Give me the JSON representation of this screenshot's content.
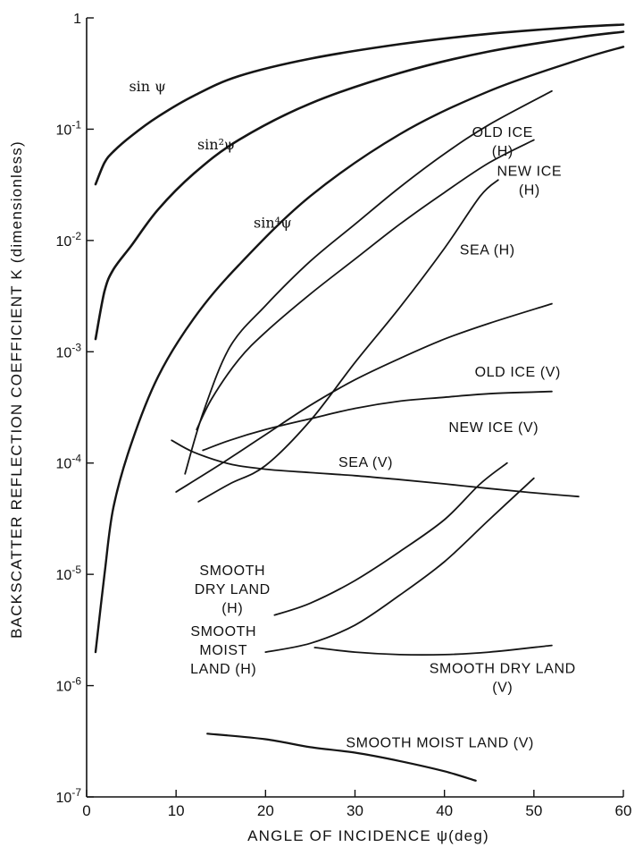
{
  "chart_data": {
    "type": "line",
    "title": "",
    "xlabel": "ANGLE OF INCIDENCE ψ(deg)",
    "ylabel": "BACKSCATTER REFLECTION COEFFICIENT K (dimensionless)",
    "xlim": [
      0,
      60
    ],
    "ylim": [
      1e-07,
      1
    ],
    "yscale": "log",
    "grid": false,
    "legend": "none",
    "x_ticks": [
      {
        "value": 0,
        "label": "0"
      },
      {
        "value": 10,
        "label": "10"
      },
      {
        "value": 20,
        "label": "20"
      },
      {
        "value": 30,
        "label": "30"
      },
      {
        "value": 40,
        "label": "40"
      },
      {
        "value": 50,
        "label": "50"
      },
      {
        "value": 60,
        "label": "60"
      }
    ],
    "y_ticks": [
      {
        "value": 1,
        "label": "1"
      },
      {
        "value": 0.1,
        "label": "10",
        "exp": "-1"
      },
      {
        "value": 0.01,
        "label": "10",
        "exp": "-2"
      },
      {
        "value": 0.001,
        "label": "10",
        "exp": "-3"
      },
      {
        "value": 0.0001,
        "label": "10",
        "exp": "-4"
      },
      {
        "value": 1e-05,
        "label": "10",
        "exp": "-5"
      },
      {
        "value": 1e-06,
        "label": "10",
        "exp": "-6"
      },
      {
        "value": 1e-07,
        "label": "10",
        "exp": "-7"
      }
    ],
    "series": [
      {
        "name": "sin ψ",
        "label_lines": [
          "sin ψ"
        ],
        "label_at": [
          6.8,
          0.22
        ],
        "label_kind": "func",
        "width": 2.6,
        "points": [
          [
            1,
            0.032
          ],
          [
            2,
            0.05
          ],
          [
            3,
            0.063
          ],
          [
            5,
            0.087
          ],
          [
            8,
            0.13
          ],
          [
            12,
            0.2
          ],
          [
            17,
            0.3
          ],
          [
            25,
            0.43
          ],
          [
            35,
            0.58
          ],
          [
            45,
            0.72
          ],
          [
            55,
            0.83
          ],
          [
            60,
            0.87
          ]
        ]
      },
      {
        "name": "sin²ψ",
        "label_lines": [
          "sin²ψ"
        ],
        "label_at": [
          14.5,
          0.066
        ],
        "label_kind": "func",
        "width": 2.6,
        "points": [
          [
            1,
            0.0013
          ],
          [
            2,
            0.0035
          ],
          [
            3,
            0.0055
          ],
          [
            5,
            0.009
          ],
          [
            8,
            0.019
          ],
          [
            12,
            0.04
          ],
          [
            17,
            0.08
          ],
          [
            25,
            0.17
          ],
          [
            35,
            0.32
          ],
          [
            45,
            0.5
          ],
          [
            55,
            0.67
          ],
          [
            60,
            0.75
          ]
        ]
      },
      {
        "name": "sin⁴ψ",
        "label_lines": [
          "sin⁴ψ"
        ],
        "label_at": [
          20.8,
          0.013
        ],
        "label_kind": "func",
        "width": 2.4,
        "points": [
          [
            1,
            2e-06
          ],
          [
            2,
            1e-05
          ],
          [
            3,
            4e-05
          ],
          [
            5,
            0.00015
          ],
          [
            8,
            0.0006
          ],
          [
            12,
            0.002
          ],
          [
            17,
            0.006
          ],
          [
            25,
            0.025
          ],
          [
            35,
            0.09
          ],
          [
            45,
            0.22
          ],
          [
            55,
            0.42
          ],
          [
            60,
            0.55
          ]
        ]
      },
      {
        "name": "OLD ICE (H)",
        "label_lines": [
          "OLD ICE",
          "(H)"
        ],
        "label_at": [
          46.5,
          0.085
        ],
        "label_kind": "text",
        "width": 1.8,
        "points": [
          [
            11,
            8e-05
          ],
          [
            13,
            0.00028
          ],
          [
            16,
            0.0011
          ],
          [
            20,
            0.0026
          ],
          [
            25,
            0.0065
          ],
          [
            30,
            0.014
          ],
          [
            35,
            0.03
          ],
          [
            40,
            0.06
          ],
          [
            45,
            0.11
          ],
          [
            52,
            0.22
          ]
        ]
      },
      {
        "name": "NEW ICE (H)",
        "label_lines": [
          "NEW ICE",
          "(H)"
        ],
        "label_at": [
          49.5,
          0.038
        ],
        "label_kind": "text",
        "width": 1.8,
        "points": [
          [
            12.3,
            0.0002
          ],
          [
            14,
            0.00038
          ],
          [
            17,
            0.00085
          ],
          [
            20,
            0.0015
          ],
          [
            25,
            0.0033
          ],
          [
            30,
            0.0068
          ],
          [
            35,
            0.014
          ],
          [
            40,
            0.027
          ],
          [
            45,
            0.05
          ],
          [
            50,
            0.08
          ]
        ]
      },
      {
        "name": "SEA (H)",
        "label_lines": [
          "SEA (H)"
        ],
        "label_at": [
          44.8,
          0.0075
        ],
        "label_kind": "text",
        "width": 1.8,
        "points": [
          [
            12.5,
            4.5e-05
          ],
          [
            16,
            6.5e-05
          ],
          [
            20,
            9.5e-05
          ],
          [
            25,
            0.00024
          ],
          [
            30,
            0.0008
          ],
          [
            35,
            0.0025
          ],
          [
            40,
            0.0085
          ],
          [
            44,
            0.025
          ],
          [
            46,
            0.035
          ]
        ]
      },
      {
        "name": "OLD ICE (V)",
        "label_lines": [
          "OLD ICE (V)"
        ],
        "label_at": [
          48.2,
          0.0006
        ],
        "label_kind": "text",
        "width": 1.8,
        "points": [
          [
            10,
            5.5e-05
          ],
          [
            15,
            9.8e-05
          ],
          [
            20,
            0.00018
          ],
          [
            25,
            0.00033
          ],
          [
            30,
            0.00056
          ],
          [
            35,
            0.00087
          ],
          [
            40,
            0.0013
          ],
          [
            45,
            0.0018
          ],
          [
            52,
            0.0027
          ]
        ]
      },
      {
        "name": "NEW ICE (V)",
        "label_lines": [
          "NEW ICE (V)"
        ],
        "label_at": [
          45.5,
          0.00019
        ],
        "label_kind": "text",
        "width": 1.8,
        "points": [
          [
            13,
            0.00013
          ],
          [
            16,
            0.00016
          ],
          [
            20,
            0.0002
          ],
          [
            25,
            0.00025
          ],
          [
            30,
            0.00031
          ],
          [
            35,
            0.00036
          ],
          [
            40,
            0.00039
          ],
          [
            45,
            0.00042
          ],
          [
            52,
            0.00044
          ]
        ]
      },
      {
        "name": "SEA (V)",
        "label_lines": [
          "SEA (V)"
        ],
        "label_at": [
          31.2,
          9.2e-05
        ],
        "label_kind": "text",
        "width": 1.8,
        "points": [
          [
            9.5,
            0.00016
          ],
          [
            12,
            0.000125
          ],
          [
            16,
            9.8e-05
          ],
          [
            20,
            8.8e-05
          ],
          [
            25,
            8.2e-05
          ],
          [
            30,
            7.7e-05
          ],
          [
            35,
            7.1e-05
          ],
          [
            40,
            6.5e-05
          ],
          [
            45,
            5.9e-05
          ],
          [
            50,
            5.4e-05
          ],
          [
            55,
            5e-05
          ]
        ]
      },
      {
        "name": "SMOOTH DRY LAND (H)",
        "label_lines": [
          "SMOOTH",
          "DRY LAND",
          "(H)"
        ],
        "label_at": [
          16.3,
          9.8e-06
        ],
        "label_kind": "text",
        "width": 1.8,
        "points": [
          [
            21,
            4.3e-06
          ],
          [
            25,
            5.5e-06
          ],
          [
            30,
            8.8e-06
          ],
          [
            35,
            1.6e-05
          ],
          [
            40,
            3.1e-05
          ],
          [
            44,
            6.5e-05
          ],
          [
            47,
            0.0001
          ]
        ]
      },
      {
        "name": "SMOOTH MOIST LAND (H)",
        "label_lines": [
          "SMOOTH",
          "MOIST",
          "LAND (H)"
        ],
        "label_at": [
          15.3,
          2.8e-06
        ],
        "label_kind": "text",
        "width": 1.8,
        "points": [
          [
            20,
            2e-06
          ],
          [
            25,
            2.4e-06
          ],
          [
            30,
            3.5e-06
          ],
          [
            35,
            6.5e-06
          ],
          [
            40,
            1.3e-05
          ],
          [
            45,
            3.1e-05
          ],
          [
            50,
            7.3e-05
          ]
        ]
      },
      {
        "name": "SMOOTH DRY LAND (V)",
        "label_lines": [
          "SMOOTH DRY LAND",
          "(V)"
        ],
        "label_at": [
          46.5,
          1.3e-06
        ],
        "label_kind": "text",
        "width": 1.8,
        "points": [
          [
            25.5,
            2.2e-06
          ],
          [
            30,
            2e-06
          ],
          [
            35,
            1.9e-06
          ],
          [
            40,
            1.9e-06
          ],
          [
            45,
            2e-06
          ],
          [
            52,
            2.3e-06
          ]
        ]
      },
      {
        "name": "SMOOTH MOIST LAND (V)",
        "label_lines": [
          "SMOOTH MOIST LAND (V)"
        ],
        "label_at": [
          39.5,
          2.8e-07
        ],
        "label_kind": "text",
        "width": 2.2,
        "points": [
          [
            13.5,
            3.7e-07
          ],
          [
            20,
            3.3e-07
          ],
          [
            25,
            2.8e-07
          ],
          [
            30,
            2.5e-07
          ],
          [
            35,
            2.1e-07
          ],
          [
            40,
            1.7e-07
          ],
          [
            43.5,
            1.4e-07
          ]
        ]
      }
    ]
  }
}
